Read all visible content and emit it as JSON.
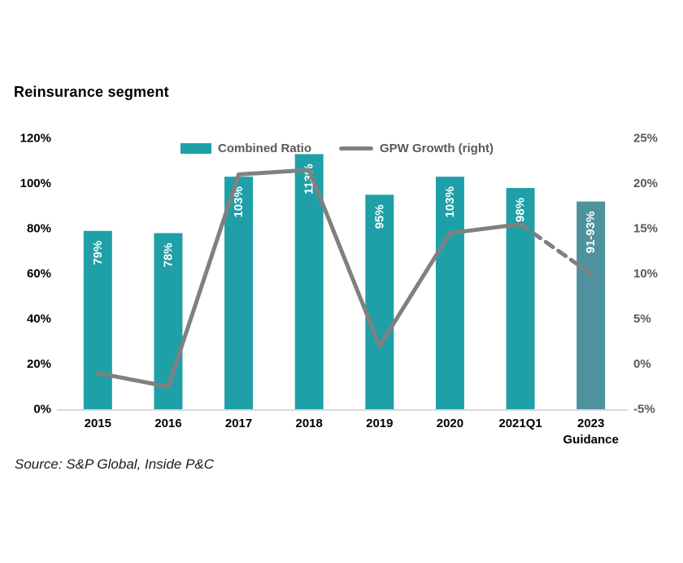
{
  "title": "Reinsurance segment",
  "source": "Source: S&P Global, Inside P&C",
  "legend": [
    {
      "label": "Combined Ratio",
      "swatch": "bar-swatch",
      "color": "#1FA0A8"
    },
    {
      "label": "GPW Growth (right)",
      "swatch": "line-swatch",
      "color": "#808080"
    }
  ],
  "colors": {
    "bar": "#1FA0A8",
    "bar_guidance": "#4E929D",
    "line": "#808080",
    "axis_text_left": "#000000",
    "axis_text_right": "#595959",
    "x_axis_text": "#000000",
    "bar_label_text": "#ffffff",
    "baseline": "#D9D9D9"
  },
  "chart_data": {
    "type": "bar",
    "subtype": "bar-line-combo",
    "title": "Reinsurance segment",
    "categories": [
      "2015",
      "2016",
      "2017",
      "2018",
      "2019",
      "2020",
      "2021Q1",
      "2023 Guidance"
    ],
    "series": [
      {
        "name": "Combined Ratio",
        "chart": "bar",
        "axis": "left",
        "unit": "%",
        "values": [
          79,
          78,
          103,
          113,
          95,
          103,
          98,
          92
        ],
        "labels": [
          "79%",
          "78%",
          "103%",
          "113%",
          "95%",
          "103%",
          "98%",
          "91-93%"
        ],
        "guidance_index": 7
      },
      {
        "name": "GPW Growth (right)",
        "chart": "line",
        "axis": "right",
        "unit": "%",
        "values": [
          -1,
          -2.5,
          21,
          21.5,
          2,
          14.5,
          15.5,
          10
        ],
        "dashed_segment_start_index": 6
      }
    ],
    "left_axis": {
      "min": 0,
      "max": 120,
      "ticks": [
        120,
        100,
        80,
        60,
        40,
        20,
        0
      ],
      "tick_labels": [
        "120%",
        "100%",
        "80%",
        "60%",
        "40%",
        "20%",
        "0%"
      ]
    },
    "right_axis": {
      "min": -5,
      "max": 25,
      "ticks": [
        25,
        20,
        15,
        10,
        5,
        0,
        -5
      ],
      "tick_labels": [
        "25%",
        "20%",
        "15%",
        "10%",
        "5%",
        "0%",
        "-5%"
      ]
    },
    "grid": "bottom-axis-line-only",
    "legend_position": "top-center",
    "bar_labels_rotated": "90deg-bottom-to-top-inside-end"
  }
}
